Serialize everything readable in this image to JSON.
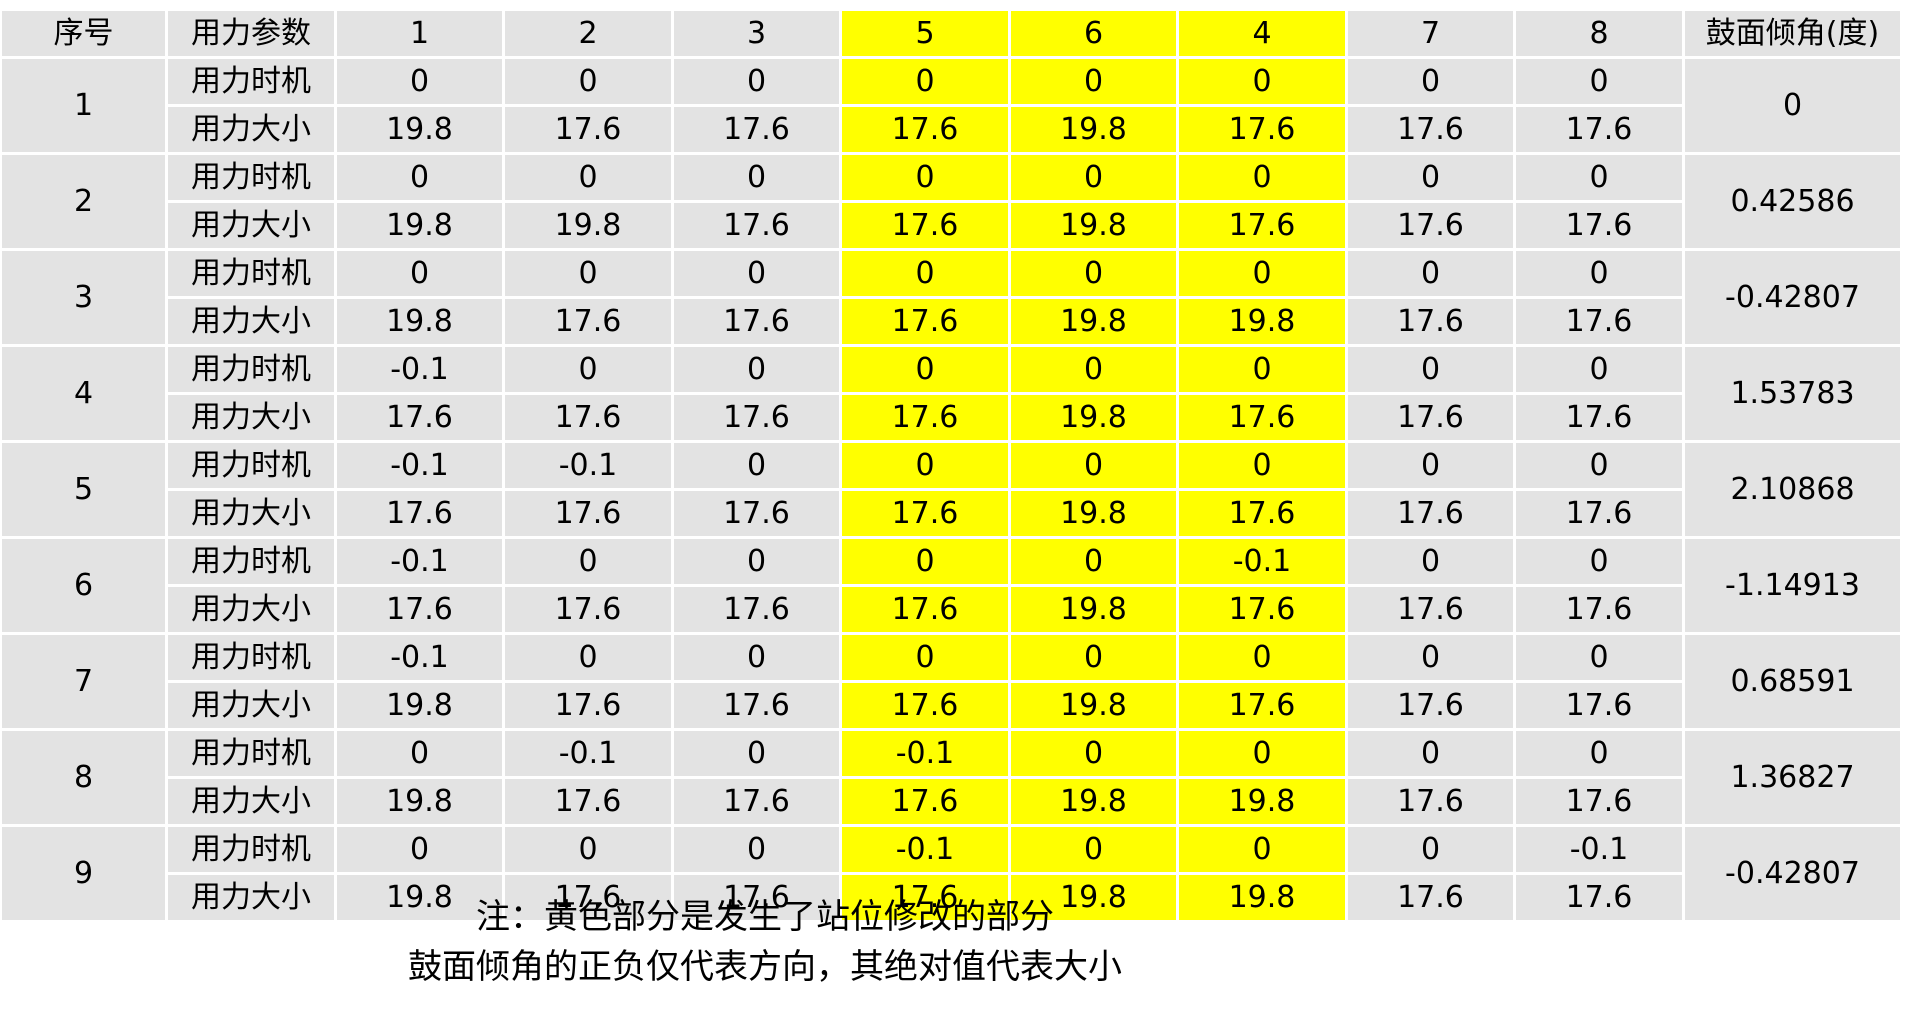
{
  "table": {
    "headers": [
      "序号",
      "用力参数",
      "1",
      "2",
      "3",
      "5",
      "6",
      "4",
      "7",
      "8",
      "鼓面倾角(度)"
    ],
    "highlight_columns": [
      5,
      6,
      7
    ],
    "colors": {
      "cell_background": "#e3e3e3",
      "highlight": "#ffff00",
      "grid": "#ffffff"
    },
    "groups": [
      {
        "id": "1",
        "angle": "0",
        "timing_label": "用力时机",
        "timing": [
          "0",
          "0",
          "0",
          "0",
          "0",
          "0",
          "0",
          "0"
        ],
        "force_label": "用力大小",
        "force": [
          "19.8",
          "17.6",
          "17.6",
          "17.6",
          "19.8",
          "17.6",
          "17.6",
          "17.6"
        ]
      },
      {
        "id": "2",
        "angle": "0.42586",
        "timing_label": "用力时机",
        "timing": [
          "0",
          "0",
          "0",
          "0",
          "0",
          "0",
          "0",
          "0"
        ],
        "force_label": "用力大小",
        "force": [
          "19.8",
          "19.8",
          "17.6",
          "17.6",
          "19.8",
          "17.6",
          "17.6",
          "17.6"
        ]
      },
      {
        "id": "3",
        "angle": "-0.42807",
        "timing_label": "用力时机",
        "timing": [
          "0",
          "0",
          "0",
          "0",
          "0",
          "0",
          "0",
          "0"
        ],
        "force_label": "用力大小",
        "force": [
          "19.8",
          "17.6",
          "17.6",
          "17.6",
          "19.8",
          "19.8",
          "17.6",
          "17.6"
        ]
      },
      {
        "id": "4",
        "angle": "1.53783",
        "timing_label": "用力时机",
        "timing": [
          "-0.1",
          "0",
          "0",
          "0",
          "0",
          "0",
          "0",
          "0"
        ],
        "force_label": "用力大小",
        "force": [
          "17.6",
          "17.6",
          "17.6",
          "17.6",
          "19.8",
          "17.6",
          "17.6",
          "17.6"
        ]
      },
      {
        "id": "5",
        "angle": "2.10868",
        "timing_label": "用力时机",
        "timing": [
          "-0.1",
          "-0.1",
          "0",
          "0",
          "0",
          "0",
          "0",
          "0"
        ],
        "force_label": "用力大小",
        "force": [
          "17.6",
          "17.6",
          "17.6",
          "17.6",
          "19.8",
          "17.6",
          "17.6",
          "17.6"
        ]
      },
      {
        "id": "6",
        "angle": "-1.14913",
        "timing_label": "用力时机",
        "timing": [
          "-0.1",
          "0",
          "0",
          "0",
          "0",
          "-0.1",
          "0",
          "0"
        ],
        "force_label": "用力大小",
        "force": [
          "17.6",
          "17.6",
          "17.6",
          "17.6",
          "19.8",
          "17.6",
          "17.6",
          "17.6"
        ]
      },
      {
        "id": "7",
        "angle": "0.68591",
        "timing_label": "用力时机",
        "timing": [
          "-0.1",
          "0",
          "0",
          "0",
          "0",
          "0",
          "0",
          "0"
        ],
        "force_label": "用力大小",
        "force": [
          "19.8",
          "17.6",
          "17.6",
          "17.6",
          "19.8",
          "17.6",
          "17.6",
          "17.6"
        ]
      },
      {
        "id": "8",
        "angle": "1.36827",
        "timing_label": "用力时机",
        "timing": [
          "0",
          "-0.1",
          "0",
          "-0.1",
          "0",
          "0",
          "0",
          "0"
        ],
        "force_label": "用力大小",
        "force": [
          "19.8",
          "17.6",
          "17.6",
          "17.6",
          "19.8",
          "19.8",
          "17.6",
          "17.6"
        ]
      },
      {
        "id": "9",
        "angle": "-0.42807",
        "timing_label": "用力时机",
        "timing": [
          "0",
          "0",
          "0",
          "-0.1",
          "0",
          "0",
          "0",
          "-0.1"
        ],
        "force_label": "用力大小",
        "force": [
          "19.8",
          "17.6",
          "17.6",
          "17.6",
          "19.8",
          "19.8",
          "17.6",
          "17.6"
        ]
      }
    ]
  },
  "notes": {
    "line1": "注：黄色部分是发生了站位修改的部分",
    "line2": "鼓面倾角的正负仅代表方向，其绝对值代表大小"
  }
}
